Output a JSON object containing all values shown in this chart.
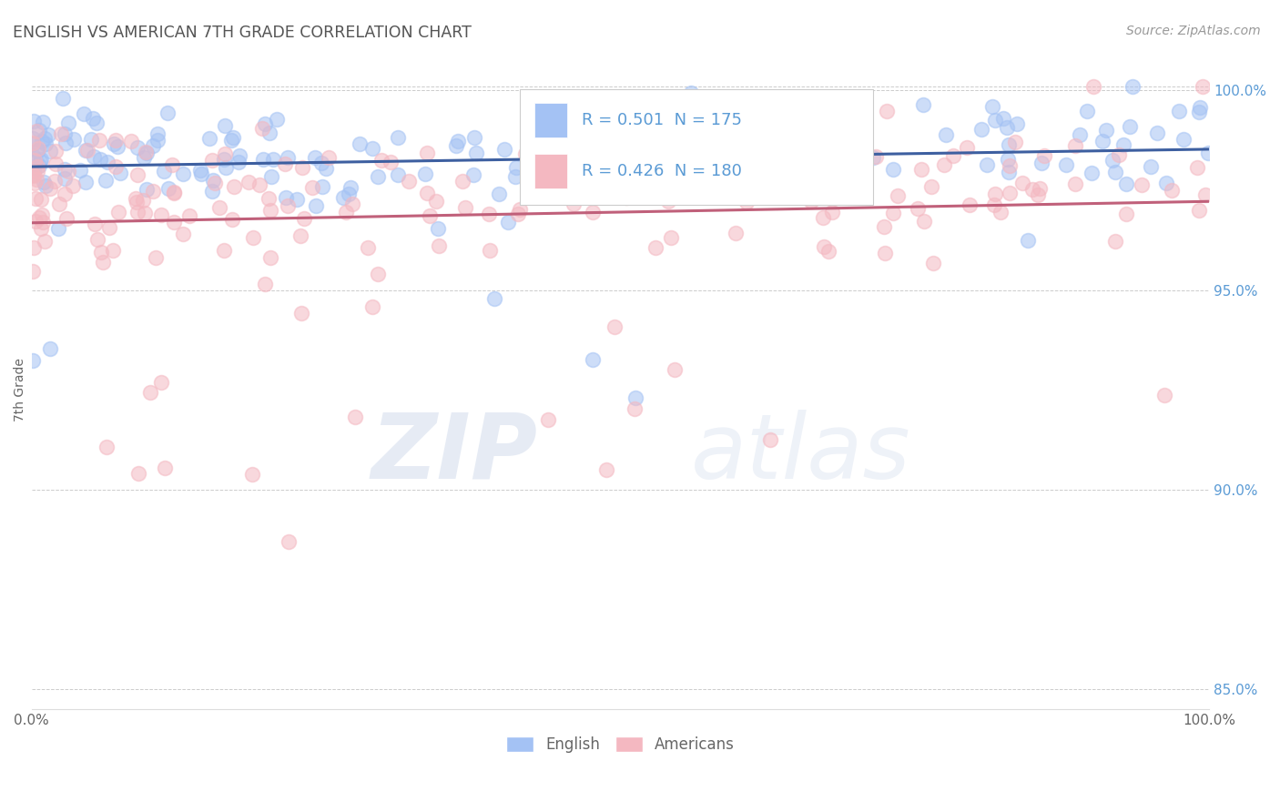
{
  "title": "ENGLISH VS AMERICAN 7TH GRADE CORRELATION CHART",
  "source": "Source: ZipAtlas.com",
  "ylabel": "7th Grade",
  "legend_entries": [
    {
      "label": "English",
      "color": "#a4c2f4",
      "R": 0.501,
      "N": 175
    },
    {
      "label": "Americans",
      "color": "#f4b8c1",
      "R": 0.426,
      "N": 180
    }
  ],
  "x_range": [
    0.0,
    1.0
  ],
  "y_range": [
    0.845,
    1.005
  ],
  "right_yticks": [
    0.85,
    0.9,
    0.95,
    1.0
  ],
  "right_yticklabels": [
    "85.0%",
    "90.0%",
    "95.0%",
    "100.0%"
  ],
  "xticks": [
    0.0,
    0.1,
    0.2,
    0.3,
    0.4,
    0.5,
    0.6,
    0.7,
    0.8,
    0.9,
    1.0
  ],
  "xticklabels": [
    "0.0%",
    "",
    "",
    "",
    "",
    "",
    "",
    "",
    "",
    "",
    "100.0%"
  ],
  "background_color": "#ffffff",
  "grid_color": "#cccccc",
  "blue_line_color": "#3d5fa0",
  "pink_line_color": "#c0607a",
  "blue_scatter_color": "#a4c2f4",
  "pink_scatter_color": "#f4b8c1",
  "title_color": "#555555",
  "axis_label_color": "#666666",
  "right_tick_color": "#5b9bd5",
  "legend_R_color": "#5b9bd5",
  "seed": 12,
  "n_english": 175,
  "n_american": 180
}
